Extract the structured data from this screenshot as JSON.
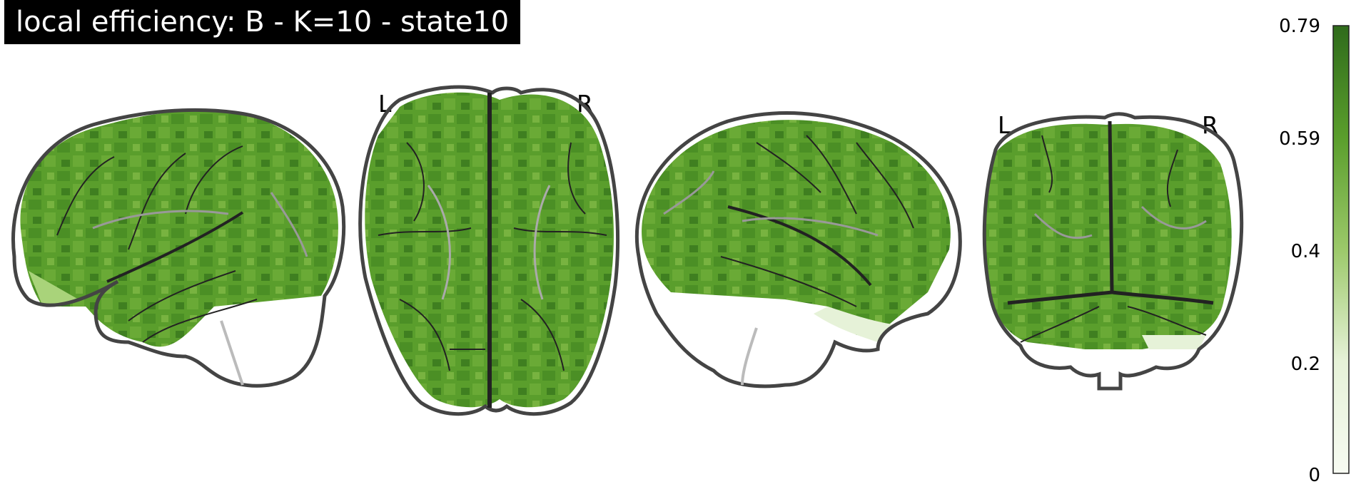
{
  "title": "local efficiency: B - K=10 - state10",
  "orientation_labels": {
    "axial_left": "L",
    "axial_right": "R",
    "coronal_left": "L",
    "coronal_right": "R"
  },
  "colorbar": {
    "ticks": [
      "0.79",
      "0.59",
      "0.4",
      "0.2",
      "0"
    ],
    "colors": [
      "#2f6b1b",
      "#5a9e2c",
      "#9cc96a",
      "#e6f2d8",
      "#f7fbf2"
    ]
  },
  "colors": {
    "fill": "#5a9e2c",
    "fill_dark": "#3f7f20",
    "fill_light": "#a9d37a",
    "outline": "#444444"
  }
}
